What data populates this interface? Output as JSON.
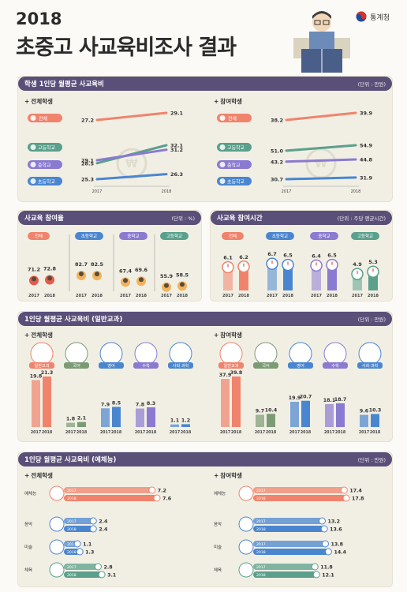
{
  "header": {
    "year": "2018",
    "title": "초중고 사교육비조사 결과",
    "agency": "통계청"
  },
  "colors": {
    "total": "#f0836c",
    "high": "#5aa08c",
    "middle": "#8a7ad1",
    "elementary": "#4a86d0",
    "header": "#5a4f79"
  },
  "section1": {
    "title": "학생 1인당 월평균 사교육비",
    "unit": "(단위 : 만원)",
    "left_title": "전체학생",
    "right_title": "참여학생",
    "years": [
      "2017",
      "2018"
    ],
    "chart_data": [
      {
        "type": "line",
        "title": "전체학생",
        "x": [
          "2017",
          "2018"
        ],
        "series": [
          {
            "name": "전체",
            "values": [
              27.2,
              29.1
            ]
          },
          {
            "name": "고등학교",
            "values": [
              28.5,
              32.1
            ]
          },
          {
            "name": "중학교",
            "values": [
              29.1,
              31.2
            ]
          },
          {
            "name": "초등학교",
            "values": [
              25.3,
              26.3
            ]
          }
        ]
      },
      {
        "type": "line",
        "title": "참여학생",
        "x": [
          "2017",
          "2018"
        ],
        "series": [
          {
            "name": "전체",
            "values": [
              38.2,
              39.9
            ]
          },
          {
            "name": "고등학교",
            "values": [
              51.0,
              54.9
            ]
          },
          {
            "name": "중학교",
            "values": [
              43.2,
              44.8
            ]
          },
          {
            "name": "초등학교",
            "values": [
              30.7,
              31.9
            ]
          }
        ]
      }
    ]
  },
  "section2": {
    "title": "사교육 참여율",
    "unit": "(단위 : %)",
    "chart_data": {
      "type": "bar",
      "title": "사교육 참여율",
      "categories": [
        "전체",
        "초등학교",
        "중학교",
        "고등학교"
      ],
      "series": [
        {
          "name": "2017",
          "values": [
            71.2,
            82.7,
            67.4,
            55.9
          ]
        },
        {
          "name": "2018",
          "values": [
            72.8,
            82.5,
            69.6,
            58.5
          ]
        }
      ]
    }
  },
  "section3": {
    "title": "사교육 참여시간",
    "unit": "(단위 : 주당 평균시간)",
    "chart_data": {
      "type": "bar",
      "title": "사교육 참여시간",
      "categories": [
        "전체",
        "초등학교",
        "중학교",
        "고등학교"
      ],
      "series": [
        {
          "name": "2017",
          "values": [
            6.1,
            6.7,
            6.4,
            4.9
          ]
        },
        {
          "name": "2018",
          "values": [
            6.2,
            6.5,
            6.5,
            5.3
          ]
        }
      ]
    }
  },
  "section4": {
    "title": "1인당 월평균 사교육비 (일반교과)",
    "unit": "(단위 : 만원)",
    "left_title": "전체학생",
    "right_title": "참여학생",
    "chart_data": [
      {
        "type": "bar",
        "title": "전체학생",
        "categories": [
          "일반교과",
          "국어",
          "영어",
          "수학",
          "사회·과학"
        ],
        "series": [
          {
            "name": "2017",
            "values": [
              19.8,
              1.8,
              7.9,
              7.8,
              1.1
            ]
          },
          {
            "name": "2018",
            "values": [
              21.3,
              2.1,
              8.5,
              8.3,
              1.2
            ]
          }
        ]
      },
      {
        "type": "bar",
        "title": "참여학생",
        "categories": [
          "일반교과",
          "국어",
          "영어",
          "수학",
          "사회·과학"
        ],
        "series": [
          {
            "name": "2017",
            "values": [
              37.9,
              9.7,
              19.9,
              18.1,
              9.6
            ]
          },
          {
            "name": "2018",
            "values": [
              39.8,
              10.4,
              20.7,
              18.7,
              10.3
            ]
          }
        ]
      }
    ]
  },
  "section5": {
    "title": "1인당 월평균 사교육비 (예체능)",
    "unit": "(단위 : 만원)",
    "left_title": "전체학생",
    "right_title": "참여학생",
    "chart_data": [
      {
        "type": "bar",
        "title": "전체학생",
        "categories": [
          "예체능",
          "음악",
          "미술",
          "체육"
        ],
        "series": [
          {
            "name": "2017",
            "values": [
              7.2,
              2.4,
              1.1,
              2.8
            ]
          },
          {
            "name": "2018",
            "values": [
              7.6,
              2.4,
              1.3,
              3.1
            ]
          }
        ]
      },
      {
        "type": "bar",
        "title": "참여학생",
        "categories": [
          "예체능",
          "음악",
          "미술",
          "체육"
        ],
        "series": [
          {
            "name": "2017",
            "values": [
              17.4,
              13.2,
              13.8,
              11.8
            ]
          },
          {
            "name": "2018",
            "values": [
              17.8,
              13.6,
              14.4,
              12.1
            ]
          }
        ]
      }
    ]
  }
}
